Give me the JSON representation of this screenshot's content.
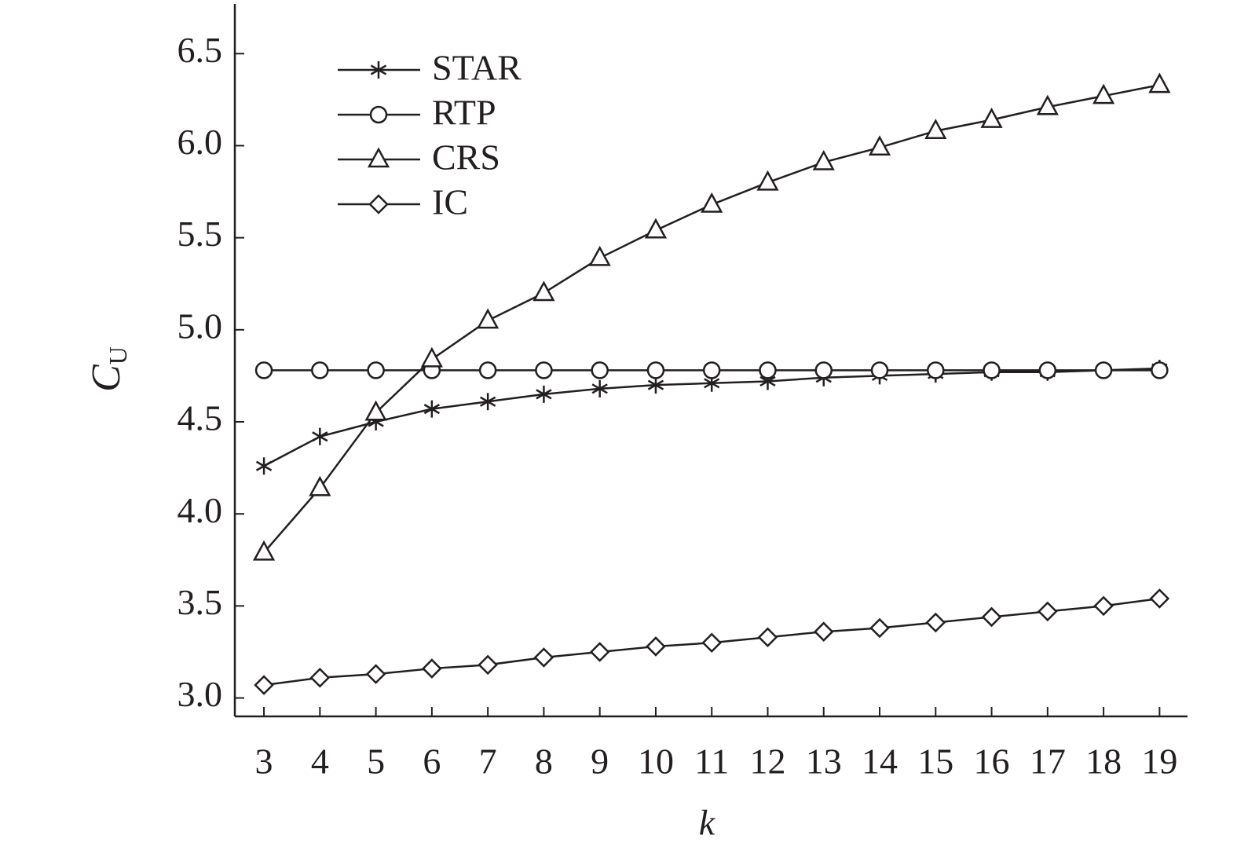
{
  "chart_data": {
    "type": "line",
    "xlabel": "k",
    "ylabel": [
      "C",
      "U"
    ],
    "x": [
      3,
      4,
      5,
      6,
      7,
      8,
      9,
      10,
      11,
      12,
      13,
      14,
      15,
      16,
      17,
      18,
      19
    ],
    "xlim": [
      2.48,
      19.5
    ],
    "xticks": [
      3,
      4,
      5,
      6,
      7,
      8,
      9,
      10,
      11,
      12,
      13,
      14,
      15,
      16,
      17,
      18,
      19
    ],
    "ylim": [
      2.9,
      6.77
    ],
    "yticks": [
      {
        "value": 3.0,
        "label": "3.0"
      },
      {
        "value": 3.5,
        "label": "3.5"
      },
      {
        "value": 4.0,
        "label": "4.0"
      },
      {
        "value": 4.5,
        "label": "4.5"
      },
      {
        "value": 5.0,
        "label": "5.0"
      },
      {
        "value": 5.5,
        "label": "5.5"
      },
      {
        "value": 6.0,
        "label": "6.0"
      },
      {
        "value": 6.5,
        "label": "6.5"
      }
    ],
    "grid": false,
    "legend": "upper left",
    "series": [
      {
        "name": "STAR",
        "color": "#231f20",
        "marker": "star",
        "values": [
          4.26,
          4.42,
          4.5,
          4.57,
          4.61,
          4.65,
          4.68,
          4.7,
          4.71,
          4.72,
          4.74,
          4.75,
          4.76,
          4.77,
          4.77,
          4.78,
          4.79
        ]
      },
      {
        "name": "RTP",
        "color": "#231f20",
        "marker": "circle",
        "values": [
          4.78,
          4.78,
          4.78,
          4.78,
          4.78,
          4.78,
          4.78,
          4.78,
          4.78,
          4.78,
          4.78,
          4.78,
          4.78,
          4.78,
          4.78,
          4.78,
          4.78
        ]
      },
      {
        "name": "CRS",
        "color": "#231f20",
        "marker": "triangle",
        "values": [
          3.79,
          4.14,
          4.55,
          4.84,
          5.05,
          5.2,
          5.39,
          5.54,
          5.68,
          5.8,
          5.91,
          5.99,
          6.08,
          6.14,
          6.21,
          6.27,
          6.33
        ]
      },
      {
        "name": "IC",
        "color": "#231f20",
        "marker": "diamond",
        "values": [
          3.07,
          3.11,
          3.13,
          3.16,
          3.18,
          3.22,
          3.25,
          3.28,
          3.3,
          3.33,
          3.36,
          3.38,
          3.41,
          3.44,
          3.47,
          3.5,
          3.54
        ]
      }
    ]
  }
}
